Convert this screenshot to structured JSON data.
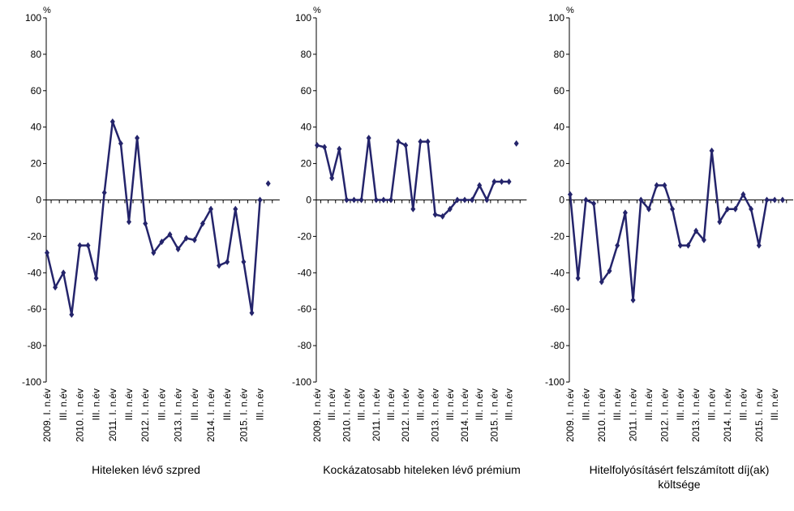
{
  "chart_data": [
    {
      "type": "line",
      "title": "Hiteleken lévő szpred",
      "ylabel": "%",
      "categories": [
        "2009. I. n.év",
        null,
        "III. n.év",
        null,
        "2010. I. n.év",
        null,
        "III. n.év",
        null,
        "2011. I. n.év",
        null,
        "III. n.év",
        null,
        "2012. I. n.év",
        null,
        "III. n.év",
        null,
        "2013. I. n.év",
        null,
        "III. n.év",
        null,
        "2014. I. n.év",
        null,
        "III. n.év",
        null,
        "2015. I. n.év",
        null,
        "III. n.év",
        null
      ],
      "series": [
        {
          "color": "#24246b",
          "line": true,
          "values": [
            -29,
            -48,
            -40,
            -63,
            -25,
            -25,
            -43,
            4,
            43,
            31,
            -12,
            34,
            -13,
            -29,
            -23,
            -19,
            -27,
            -21,
            -22,
            -13,
            -5,
            -36,
            -34,
            -5,
            -34,
            -62,
            0,
            null
          ]
        },
        {
          "color": "#24246b",
          "line": false,
          "values": [
            null,
            null,
            null,
            null,
            null,
            null,
            null,
            null,
            null,
            null,
            null,
            null,
            null,
            null,
            null,
            null,
            null,
            null,
            null,
            null,
            null,
            null,
            null,
            null,
            null,
            null,
            null,
            9
          ]
        }
      ],
      "ylim": [
        -100,
        100
      ],
      "yticks": [
        -100,
        -80,
        -60,
        -40,
        -20,
        0,
        20,
        40,
        60,
        80,
        100
      ]
    },
    {
      "type": "line",
      "title": "Kockázatosabb hiteleken lévő prémium",
      "ylabel": "%",
      "categories": [
        "2009. I. n.év",
        null,
        "III. n.év",
        null,
        "2010. I. n.év",
        null,
        "III. n.év",
        null,
        "2011. I. n.év",
        null,
        "III. n.év",
        null,
        "2012. I. n.év",
        null,
        "III. n.év",
        null,
        "2013. I. n.év",
        null,
        "III. n.év",
        null,
        "2014. I. n.év",
        null,
        "III. n.év",
        null,
        "2015. I. n.év",
        null,
        "III. n.év",
        null
      ],
      "series": [
        {
          "color": "#24246b",
          "line": true,
          "values": [
            30,
            29,
            12,
            28,
            0,
            0,
            0,
            34,
            0,
            0,
            0,
            32,
            30,
            -5,
            32,
            32,
            -8,
            -9,
            -5,
            0,
            0,
            0,
            8,
            0,
            10,
            10,
            10,
            null
          ]
        },
        {
          "color": "#24246b",
          "line": false,
          "values": [
            null,
            null,
            null,
            null,
            null,
            null,
            null,
            null,
            null,
            null,
            null,
            null,
            null,
            null,
            null,
            null,
            null,
            null,
            null,
            null,
            null,
            null,
            null,
            null,
            null,
            null,
            null,
            31
          ]
        }
      ],
      "ylim": [
        -100,
        100
      ],
      "yticks": [
        -100,
        -80,
        -60,
        -40,
        -20,
        0,
        20,
        40,
        60,
        80,
        100
      ]
    },
    {
      "type": "line",
      "title": "Hitelfolyósításért felszámított díj(ak) költsége",
      "ylabel": "%",
      "categories": [
        "2009. I. n.év",
        null,
        "III. n.év",
        null,
        "2010. I. n.év",
        null,
        "III. n.év",
        null,
        "2011. I. n.év",
        null,
        "III. n.év",
        null,
        "2012. I. n.év",
        null,
        "III. n.év",
        null,
        "2013. I. n.év",
        null,
        "III. n.év",
        null,
        "2014. I. n.év",
        null,
        "III. n.év",
        null,
        "2015. I. n.év",
        null,
        "III. n.év",
        null
      ],
      "series": [
        {
          "color": "#24246b",
          "line": true,
          "values": [
            3,
            -43,
            0,
            -2,
            -45,
            -39,
            -25,
            -7,
            -55,
            0,
            -5,
            8,
            8,
            -5,
            -25,
            -25,
            -17,
            -22,
            27,
            -12,
            -5,
            -5,
            3,
            -5,
            -25,
            0,
            0,
            null
          ]
        },
        {
          "color": "#24246b",
          "line": false,
          "values": [
            null,
            null,
            null,
            null,
            null,
            null,
            null,
            null,
            null,
            null,
            null,
            null,
            null,
            null,
            null,
            null,
            null,
            null,
            null,
            null,
            null,
            null,
            null,
            null,
            null,
            null,
            null,
            0
          ]
        }
      ],
      "ylim": [
        -100,
        100
      ],
      "yticks": [
        -100,
        -80,
        -60,
        -40,
        -20,
        0,
        20,
        40,
        60,
        80,
        100
      ]
    }
  ]
}
